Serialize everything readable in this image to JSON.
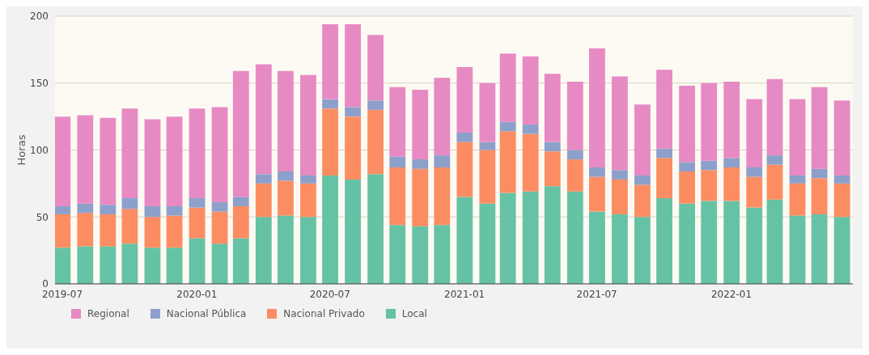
{
  "chart_data": {
    "type": "bar",
    "stacked": true,
    "ylabel": "Horas",
    "ylim": [
      0,
      200
    ],
    "yticks": [
      0,
      50,
      100,
      150,
      200
    ],
    "grid": "y",
    "legend": "bottom",
    "x": [
      "2019-07",
      "2019-08",
      "2019-09",
      "2019-10",
      "2019-11",
      "2019-12",
      "2020-01",
      "2020-02",
      "2020-03",
      "2020-04",
      "2020-05",
      "2020-06",
      "2020-07",
      "2020-08",
      "2020-09",
      "2020-10",
      "2020-11",
      "2020-12",
      "2021-01",
      "2021-02",
      "2021-03",
      "2021-04",
      "2021-05",
      "2021-06",
      "2021-07",
      "2021-08",
      "2021-09",
      "2021-10",
      "2021-11",
      "2021-12",
      "2022-01",
      "2022-02",
      "2022-03",
      "2022-04",
      "2022-05",
      "2022-06"
    ],
    "xlim": [
      "2019-06-21",
      "2022-06-16"
    ],
    "xticks": [
      "2019-07",
      "2020-01",
      "2020-07",
      "2021-01",
      "2021-07",
      "2022-01"
    ],
    "series": [
      {
        "name": "Local",
        "color": "#66c2a5",
        "values": [
          27,
          28,
          28,
          30,
          27,
          27,
          34,
          30,
          34,
          50,
          51,
          50,
          81,
          78,
          82,
          44,
          43,
          44,
          65,
          60,
          68,
          69,
          73,
          69,
          54,
          52,
          50,
          64,
          60,
          62,
          62,
          57,
          63,
          51,
          52,
          50
        ]
      },
      {
        "name": "Nacional Privado",
        "color": "#fc8d62",
        "values": [
          25,
          25,
          24,
          26,
          23,
          24,
          23,
          24,
          24,
          25,
          26,
          25,
          50,
          47,
          48,
          43,
          43,
          43,
          41,
          40,
          46,
          43,
          26,
          24,
          26,
          26,
          24,
          30,
          24,
          23,
          25,
          23,
          26,
          24,
          27,
          25
        ]
      },
      {
        "name": "Nacional Pública",
        "color": "#8da0cb",
        "values": [
          6,
          7,
          7,
          8,
          8,
          7,
          7,
          7,
          7,
          7,
          7,
          6,
          7,
          7,
          7,
          8,
          7,
          9,
          7,
          6,
          7,
          7,
          7,
          7,
          7,
          7,
          7,
          7,
          7,
          7,
          7,
          7,
          7,
          6,
          7,
          6
        ]
      },
      {
        "name": "Regional",
        "color": "#e78ac3",
        "values": [
          67,
          66,
          65,
          67,
          65,
          67,
          67,
          71,
          94,
          82,
          75,
          75,
          56,
          62,
          49,
          52,
          52,
          58,
          49,
          44,
          51,
          51,
          51,
          51,
          89,
          70,
          53,
          59,
          57,
          58,
          57,
          51,
          57,
          57,
          61,
          56
        ]
      }
    ]
  }
}
